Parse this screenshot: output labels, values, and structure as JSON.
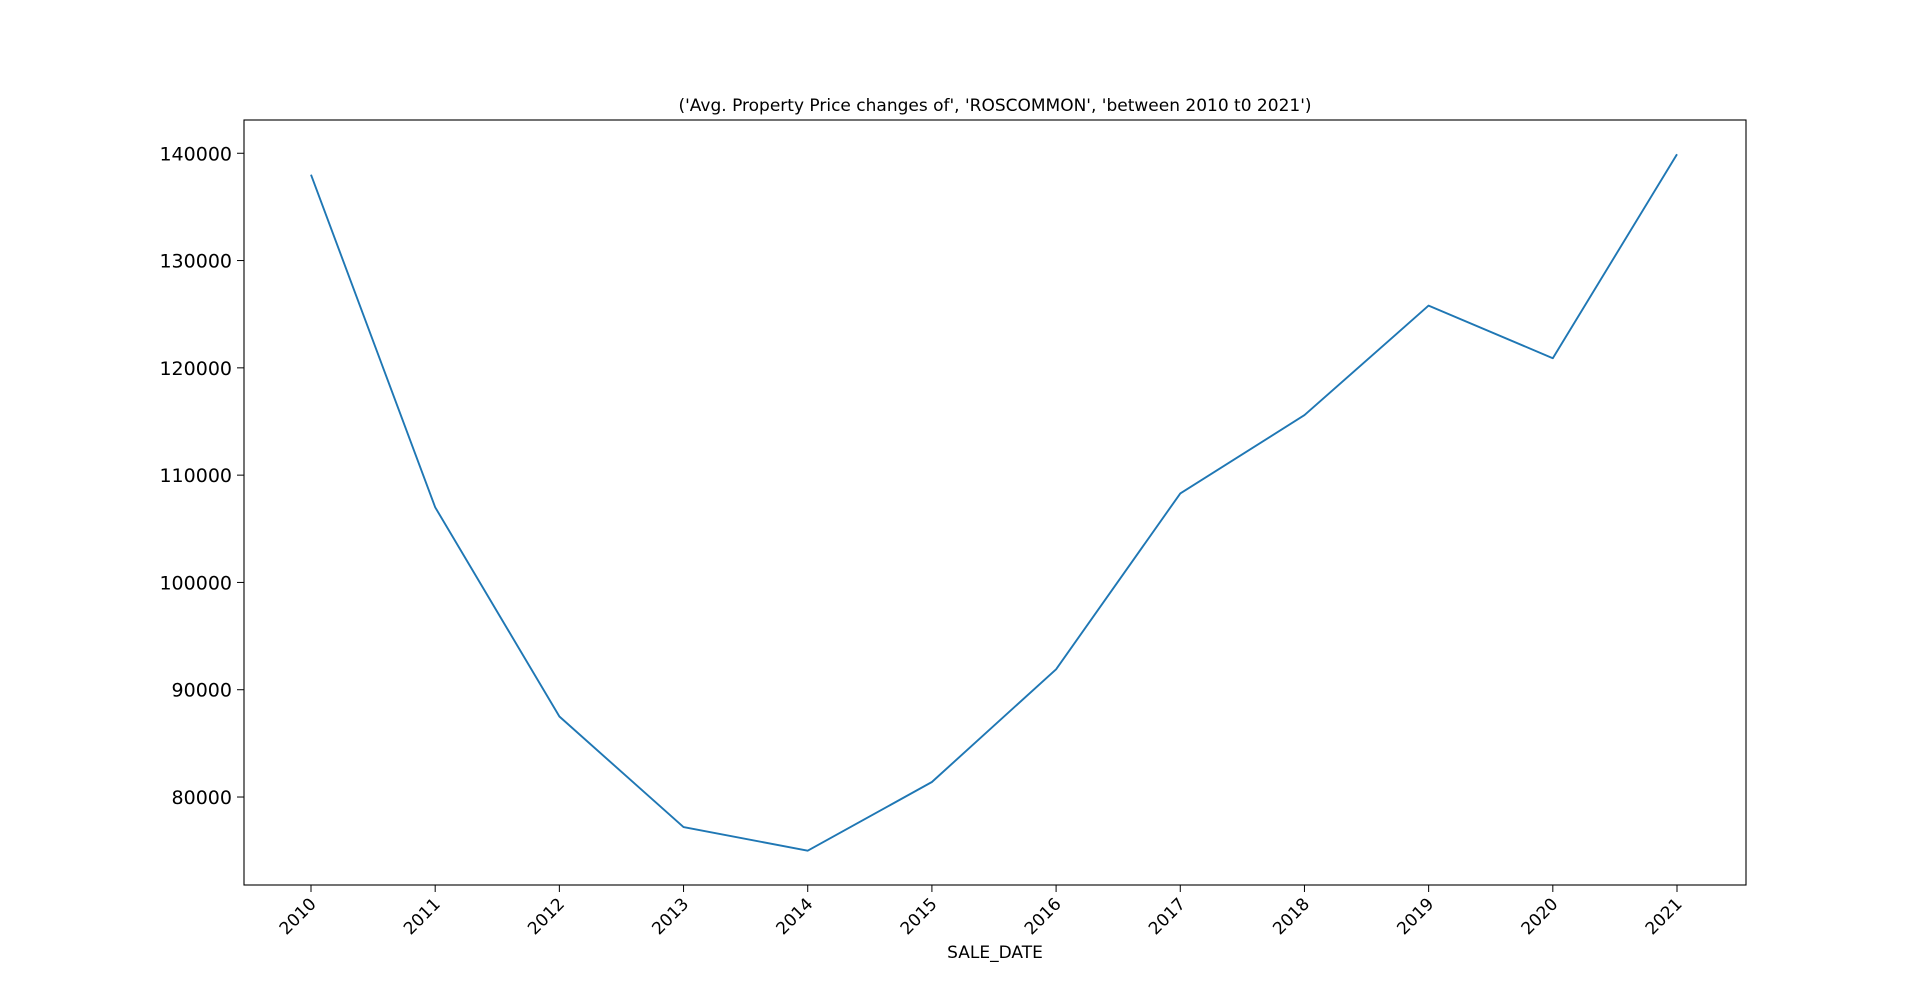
{
  "chart_data": {
    "type": "line",
    "title": "('Avg. Property Price changes of', 'ROSCOMMON', 'between 2010 t0 2021')",
    "xlabel": "SALE_DATE",
    "ylabel": "",
    "x": [
      "2010",
      "2011",
      "2012",
      "2013",
      "2014",
      "2015",
      "2016",
      "2017",
      "2018",
      "2019",
      "2020",
      "2021"
    ],
    "series": [
      {
        "values": [
          138000,
          107000,
          87500,
          77200,
          75000,
          81400,
          91900,
          108300,
          115600,
          125800,
          120900,
          139900
        ]
      }
    ],
    "yticks": [
      80000,
      90000,
      100000,
      110000,
      120000,
      130000,
      140000
    ],
    "ylim": [
      71800,
      143100
    ],
    "legend": "none",
    "grid": false,
    "line_color": "#1f77b4",
    "x_tick_rotation": "45 degrees"
  }
}
